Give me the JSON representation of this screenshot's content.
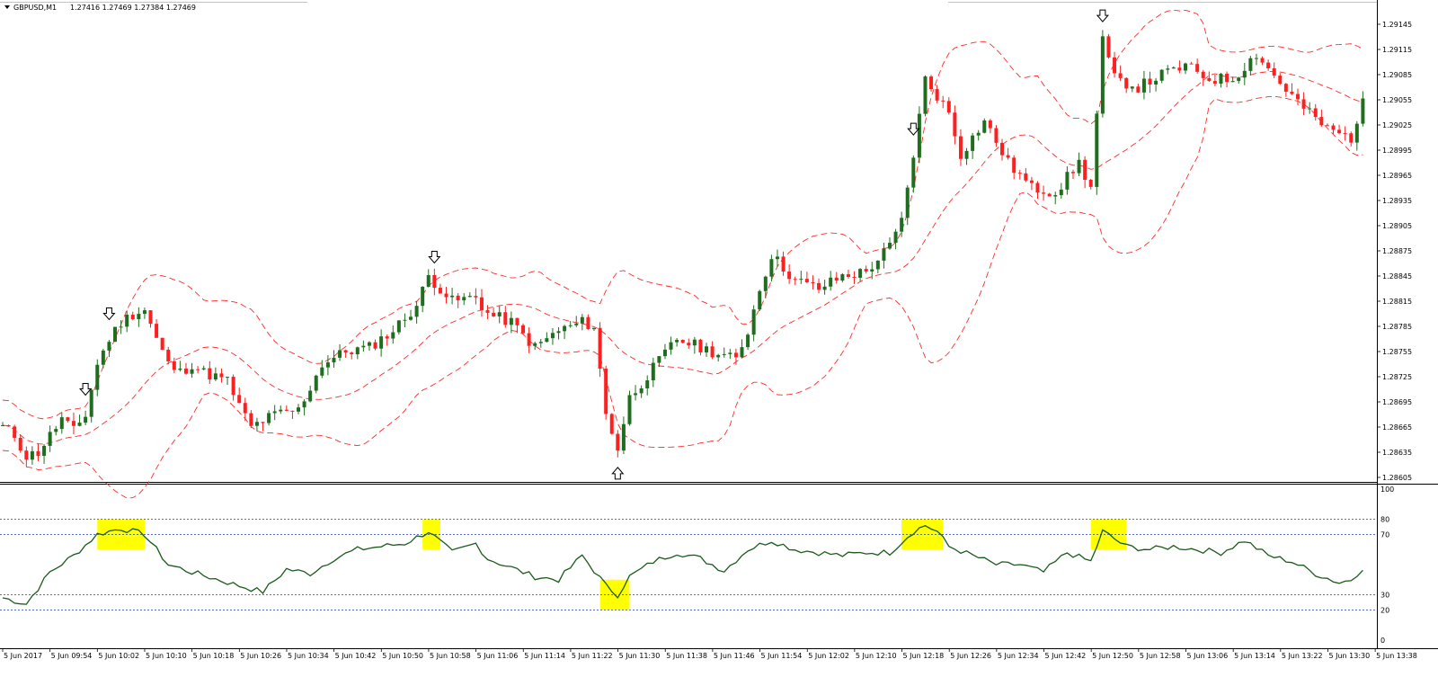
{
  "header": {
    "symbol_label": "GBPUSD,M1",
    "ohlc_label": "1.27416 1.27469 1.27384 1.27469"
  },
  "colors": {
    "background": "#ffffff",
    "bull_candle": "#1f6e1f",
    "bear_candle": "#ff1f1f",
    "bands": "#ff2a2a",
    "oscillator_line": "#1a5a1a",
    "levels": "#1f3fbf",
    "highlight": "#ffff00"
  },
  "price_axis": {
    "labels": [
      "1.29145",
      "1.29115",
      "1.29085",
      "1.29055",
      "1.29025",
      "1.28995",
      "1.28965",
      "1.28935",
      "1.28905",
      "1.28875",
      "1.28845",
      "1.28815",
      "1.28785",
      "1.28755",
      "1.28725",
      "1.28695",
      "1.28665",
      "1.28635",
      "1.28605"
    ]
  },
  "indicator_axis": {
    "labels": [
      "100",
      "80",
      "70",
      "30",
      "20",
      "0"
    ]
  },
  "time_axis": {
    "labels": [
      "5 Jun 2017",
      "5 Jun 09:54",
      "5 Jun 10:02",
      "5 Jun 10:10",
      "5 Jun 10:18",
      "5 Jun 10:26",
      "5 Jun 10:34",
      "5 Jun 10:42",
      "5 Jun 10:50",
      "5 Jun 10:58",
      "5 Jun 11:06",
      "5 Jun 11:14",
      "5 Jun 11:22",
      "5 Jun 11:30",
      "5 Jun 11:38",
      "5 Jun 11:46",
      "5 Jun 11:54",
      "5 Jun 12:02",
      "5 Jun 12:10",
      "5 Jun 12:18",
      "5 Jun 12:26",
      "5 Jun 12:34",
      "5 Jun 12:42",
      "5 Jun 12:50",
      "5 Jun 12:58",
      "5 Jun 13:06",
      "5 Jun 13:14",
      "5 Jun 13:22",
      "5 Jun 13:30",
      "5 Jun 13:38"
    ]
  },
  "chart_data": {
    "type": "candlestick",
    "symbol": "GBPUSD",
    "timeframe": "M1",
    "ylim": [
      1.28605,
      1.29145
    ],
    "indicator_ylim": [
      0,
      100
    ],
    "indicator_levels": [
      80,
      70,
      30,
      20
    ],
    "signals": [
      {
        "time": "10:00",
        "direction": "down"
      },
      {
        "time": "10:04",
        "direction": "down"
      },
      {
        "time": "10:59",
        "direction": "down"
      },
      {
        "time": "11:30",
        "direction": "up"
      },
      {
        "time": "12:20",
        "direction": "down"
      },
      {
        "time": "12:52",
        "direction": "down"
      }
    ],
    "highlight_zones": [
      {
        "from": "10:02",
        "to": "10:10",
        "band": "overbought"
      },
      {
        "from": "10:57",
        "to": "11:00",
        "band": "overbought"
      },
      {
        "from": "11:27",
        "to": "11:32",
        "band": "oversold"
      },
      {
        "from": "12:18",
        "to": "12:25",
        "band": "overbought"
      },
      {
        "from": "12:50",
        "to": "12:56",
        "band": "overbought"
      }
    ],
    "price_path": [
      [
        "09:46",
        1.28665
      ],
      [
        "09:48",
        1.28655
      ],
      [
        "09:50",
        1.2863
      ],
      [
        "09:52",
        1.28635
      ],
      [
        "09:54",
        1.28655
      ],
      [
        "09:56",
        1.28675
      ],
      [
        "09:58",
        1.2866
      ],
      [
        "10:00",
        1.2868
      ],
      [
        "10:02",
        1.2874
      ],
      [
        "10:04",
        1.2877
      ],
      [
        "10:06",
        1.2879
      ],
      [
        "10:08",
        1.288
      ],
      [
        "10:10",
        1.28805
      ],
      [
        "10:12",
        1.2877
      ],
      [
        "10:14",
        1.2874
      ],
      [
        "10:16",
        1.2873
      ],
      [
        "10:18",
        1.2874
      ],
      [
        "10:20",
        1.2873
      ],
      [
        "10:24",
        1.2872
      ],
      [
        "10:26",
        1.2869
      ],
      [
        "10:28",
        1.28665
      ],
      [
        "10:32",
        1.2868
      ],
      [
        "10:36",
        1.28685
      ],
      [
        "10:40",
        1.2874
      ],
      [
        "10:44",
        1.28755
      ],
      [
        "10:48",
        1.2876
      ],
      [
        "10:52",
        1.2878
      ],
      [
        "10:56",
        1.2881
      ],
      [
        "10:58",
        1.28845
      ],
      [
        "11:02",
        1.28815
      ],
      [
        "11:06",
        1.2882
      ],
      [
        "11:08",
        1.288
      ],
      [
        "11:12",
        1.2879
      ],
      [
        "11:16",
        1.2876
      ],
      [
        "11:20",
        1.2878
      ],
      [
        "11:24",
        1.2879
      ],
      [
        "11:26",
        1.28785
      ],
      [
        "11:28",
        1.2868
      ],
      [
        "11:30",
        1.2864
      ],
      [
        "11:32",
        1.287
      ],
      [
        "11:36",
        1.28735
      ],
      [
        "11:40",
        1.2877
      ],
      [
        "11:44",
        1.2876
      ],
      [
        "11:48",
        1.2875
      ],
      [
        "11:50",
        1.28745
      ],
      [
        "11:52",
        1.2878
      ],
      [
        "11:54",
        1.2883
      ],
      [
        "11:56",
        1.2887
      ],
      [
        "12:00",
        1.2884
      ],
      [
        "12:04",
        1.2883
      ],
      [
        "12:08",
        1.28845
      ],
      [
        "12:12",
        1.2885
      ],
      [
        "12:16",
        1.2888
      ],
      [
        "12:18",
        1.2891
      ],
      [
        "12:20",
        1.2899
      ],
      [
        "12:22",
        1.2908
      ],
      [
        "12:26",
        1.2904
      ],
      [
        "12:28",
        1.2899
      ],
      [
        "12:32",
        1.2903
      ],
      [
        "12:36",
        1.2898
      ],
      [
        "12:40",
        1.2895
      ],
      [
        "12:44",
        1.28945
      ],
      [
        "12:48",
        1.2898
      ],
      [
        "12:50",
        1.2895
      ],
      [
        "12:52",
        1.29125
      ],
      [
        "12:54",
        1.2908
      ],
      [
        "12:58",
        1.2907
      ],
      [
        "13:02",
        1.29085
      ],
      [
        "13:06",
        1.29095
      ],
      [
        "13:10",
        1.2908
      ],
      [
        "13:14",
        1.2908
      ],
      [
        "13:18",
        1.2911
      ],
      [
        "13:22",
        1.29075
      ],
      [
        "13:26",
        1.29045
      ],
      [
        "13:30",
        1.2902
      ],
      [
        "13:34",
        1.2901
      ],
      [
        "13:36",
        1.2905
      ]
    ],
    "oscillator_path": [
      [
        "09:46",
        28
      ],
      [
        "09:50",
        24
      ],
      [
        "09:54",
        45
      ],
      [
        "09:58",
        56
      ],
      [
        "10:02",
        70
      ],
      [
        "10:06",
        74
      ],
      [
        "10:10",
        70
      ],
      [
        "10:14",
        50
      ],
      [
        "10:18",
        45
      ],
      [
        "10:26",
        36
      ],
      [
        "10:30",
        32
      ],
      [
        "10:34",
        47
      ],
      [
        "10:38",
        44
      ],
      [
        "10:42",
        54
      ],
      [
        "10:46",
        60
      ],
      [
        "10:50",
        62
      ],
      [
        "10:54",
        64
      ],
      [
        "10:58",
        72
      ],
      [
        "11:02",
        58
      ],
      [
        "11:06",
        64
      ],
      [
        "11:08",
        54
      ],
      [
        "11:12",
        48
      ],
      [
        "11:16",
        42
      ],
      [
        "11:20",
        40
      ],
      [
        "11:24",
        56
      ],
      [
        "11:28",
        36
      ],
      [
        "11:30",
        30
      ],
      [
        "11:32",
        42
      ],
      [
        "11:36",
        52
      ],
      [
        "11:40",
        58
      ],
      [
        "11:44",
        54
      ],
      [
        "11:48",
        46
      ],
      [
        "11:52",
        60
      ],
      [
        "11:56",
        66
      ],
      [
        "12:00",
        60
      ],
      [
        "12:04",
        58
      ],
      [
        "12:08",
        56
      ],
      [
        "12:12",
        58
      ],
      [
        "12:16",
        58
      ],
      [
        "12:20",
        72
      ],
      [
        "12:22",
        76
      ],
      [
        "12:24",
        72
      ],
      [
        "12:26",
        62
      ],
      [
        "12:30",
        56
      ],
      [
        "12:34",
        50
      ],
      [
        "12:38",
        50
      ],
      [
        "12:42",
        45
      ],
      [
        "12:46",
        58
      ],
      [
        "12:50",
        52
      ],
      [
        "12:52",
        72
      ],
      [
        "12:56",
        62
      ],
      [
        "13:00",
        60
      ],
      [
        "13:04",
        62
      ],
      [
        "13:08",
        60
      ],
      [
        "13:12",
        58
      ],
      [
        "13:16",
        66
      ],
      [
        "13:20",
        56
      ],
      [
        "13:24",
        52
      ],
      [
        "13:28",
        44
      ],
      [
        "13:32",
        38
      ],
      [
        "13:34",
        40
      ],
      [
        "13:36",
        48
      ]
    ]
  }
}
